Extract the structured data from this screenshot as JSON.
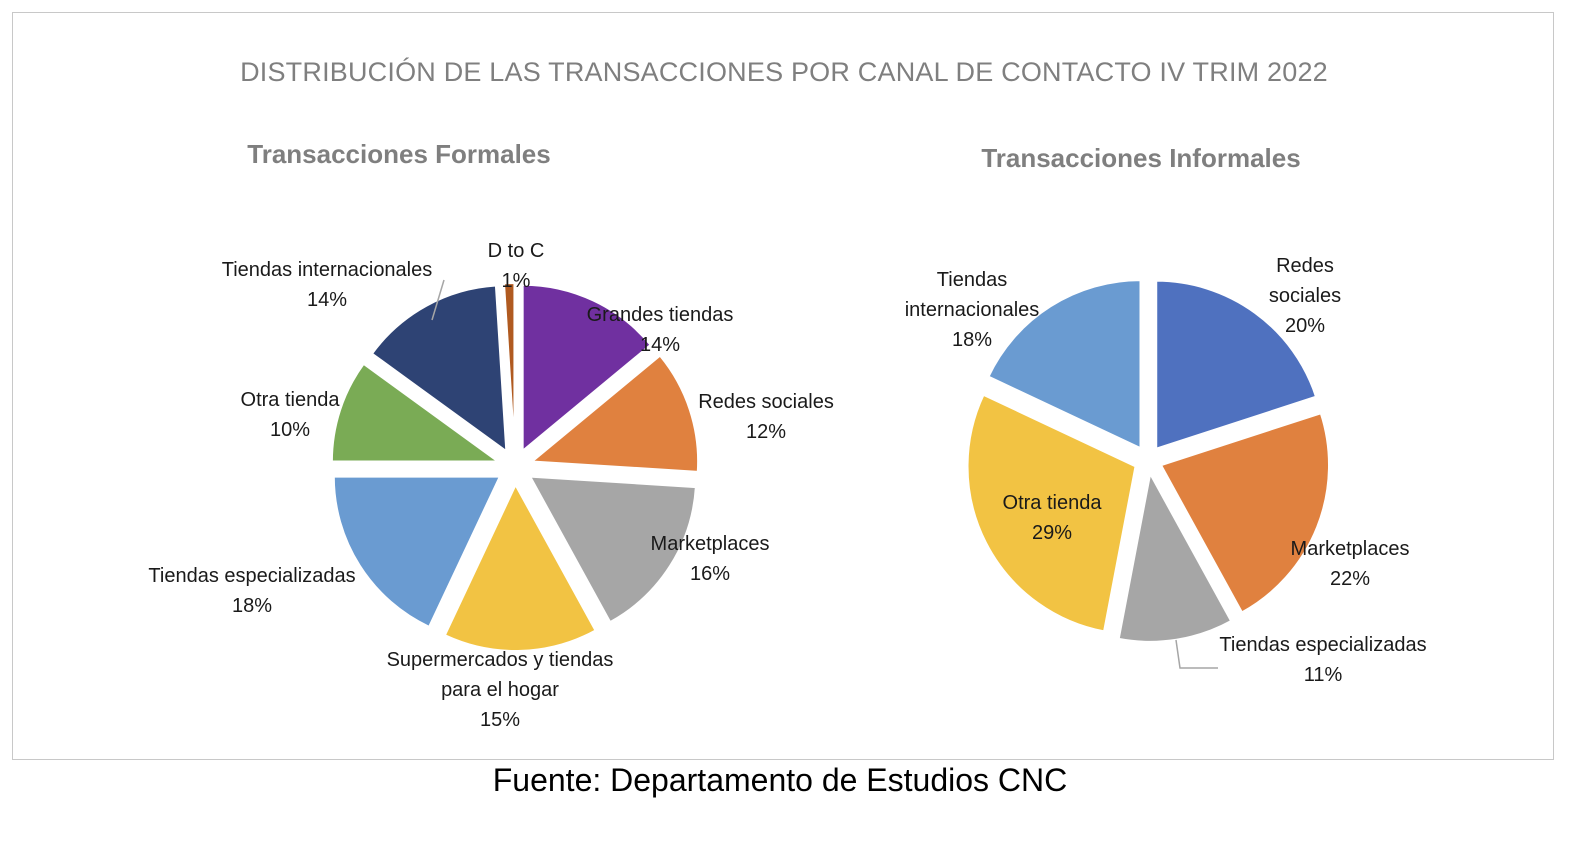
{
  "title": "DISTRIBUCIÓN DE LAS TRANSACCIONES  POR CANAL DE CONTACTO IV TRIM 2022",
  "source": "Fuente: Departamento de Estudios CNC",
  "chart_data": [
    {
      "type": "pie",
      "title": "Transacciones Formales",
      "slices": [
        {
          "label": "Grandes tiendas",
          "value": 14,
          "pct_label": "14%",
          "color": "#7030a0"
        },
        {
          "label": "Redes sociales",
          "value": 12,
          "pct_label": "12%",
          "color": "#e0813f"
        },
        {
          "label": "Marketplaces",
          "value": 16,
          "pct_label": "16%",
          "color": "#a6a6a6"
        },
        {
          "label": "Supermercados y tiendas para el hogar",
          "label_lines": [
            "Supermercados y tiendas",
            "para el hogar"
          ],
          "value": 15,
          "pct_label": "15%",
          "color": "#f2c343"
        },
        {
          "label": "Tiendas especializadas",
          "value": 18,
          "pct_label": "18%",
          "color": "#6a9bd1"
        },
        {
          "label": "Otra tienda",
          "value": 10,
          "pct_label": "10%",
          "color": "#7aab55"
        },
        {
          "label": "Tiendas internacionales",
          "value": 14,
          "pct_label": "14%",
          "color": "#2e4374"
        },
        {
          "label": "D to C",
          "value": 1,
          "pct_label": "1%",
          "color": "#b05a20"
        }
      ]
    },
    {
      "type": "pie",
      "title": "Transacciones Informales",
      "slices": [
        {
          "label": "Redes sociales",
          "label_lines": [
            "Redes",
            "sociales"
          ],
          "value": 20,
          "pct_label": "20%",
          "color": "#4f71bf"
        },
        {
          "label": "Marketplaces",
          "value": 22,
          "pct_label": "22%",
          "color": "#e0813f"
        },
        {
          "label": "Tiendas especializadas",
          "value": 11,
          "pct_label": "11%",
          "color": "#a6a6a6"
        },
        {
          "label": "Otra tienda",
          "value": 29,
          "pct_label": "29%",
          "color": "#f2c343"
        },
        {
          "label": "Tiendas internacionales",
          "label_lines": [
            "Tiendas",
            "internacionales"
          ],
          "value": 18,
          "pct_label": "18%",
          "color": "#6a9bd1"
        }
      ]
    }
  ]
}
